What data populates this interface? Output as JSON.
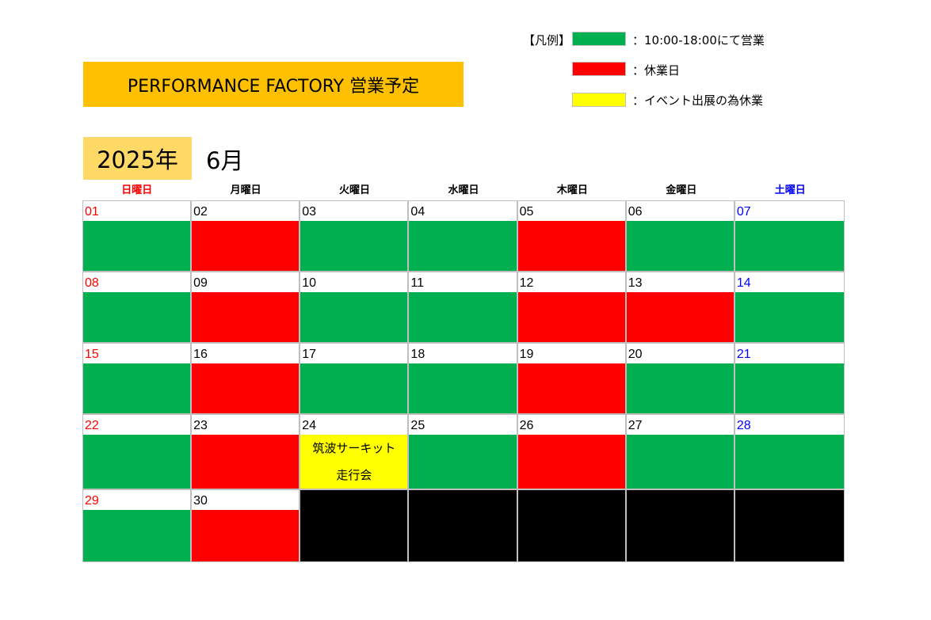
{
  "header": {
    "title": "PERFORMANCE FACTORY 営業予定",
    "year": "2025年",
    "month": "6月"
  },
  "legend": {
    "label": "【凡例】",
    "items": [
      {
        "text": "：10:00-18:00にて営業",
        "color": "#00b050"
      },
      {
        "text": "：休業日",
        "color": "#ff0000"
      },
      {
        "text": "：イベント出展の為休業",
        "color": "#ffff00"
      }
    ]
  },
  "colors": {
    "open": "#00b050",
    "closed": "#ff0000",
    "event": "#ffff00",
    "blank": "#000000",
    "sunday": "#ff0000",
    "saturday": "#0000ff",
    "weekday": "#000000"
  },
  "weekdays": [
    "日曜日",
    "月曜日",
    "火曜日",
    "水曜日",
    "木曜日",
    "金曜日",
    "土曜日"
  ],
  "days": [
    {
      "num": "01",
      "status": "open"
    },
    {
      "num": "02",
      "status": "closed"
    },
    {
      "num": "03",
      "status": "open"
    },
    {
      "num": "04",
      "status": "open"
    },
    {
      "num": "05",
      "status": "closed"
    },
    {
      "num": "06",
      "status": "open"
    },
    {
      "num": "07",
      "status": "open"
    },
    {
      "num": "08",
      "status": "open"
    },
    {
      "num": "09",
      "status": "closed"
    },
    {
      "num": "10",
      "status": "open"
    },
    {
      "num": "11",
      "status": "open"
    },
    {
      "num": "12",
      "status": "closed"
    },
    {
      "num": "13",
      "status": "closed"
    },
    {
      "num": "14",
      "status": "open"
    },
    {
      "num": "15",
      "status": "open"
    },
    {
      "num": "16",
      "status": "closed"
    },
    {
      "num": "17",
      "status": "open"
    },
    {
      "num": "18",
      "status": "open"
    },
    {
      "num": "19",
      "status": "closed"
    },
    {
      "num": "20",
      "status": "open"
    },
    {
      "num": "21",
      "status": "open"
    },
    {
      "num": "22",
      "status": "open"
    },
    {
      "num": "23",
      "status": "closed"
    },
    {
      "num": "24",
      "status": "event",
      "note": "筑波サーキット\n走行会"
    },
    {
      "num": "25",
      "status": "open"
    },
    {
      "num": "26",
      "status": "closed"
    },
    {
      "num": "27",
      "status": "open"
    },
    {
      "num": "28",
      "status": "open"
    },
    {
      "num": "29",
      "status": "open"
    },
    {
      "num": "30",
      "status": "closed"
    },
    {
      "num": "",
      "status": "blank"
    },
    {
      "num": "",
      "status": "blank"
    },
    {
      "num": "",
      "status": "blank"
    },
    {
      "num": "",
      "status": "blank"
    },
    {
      "num": "",
      "status": "blank"
    }
  ]
}
